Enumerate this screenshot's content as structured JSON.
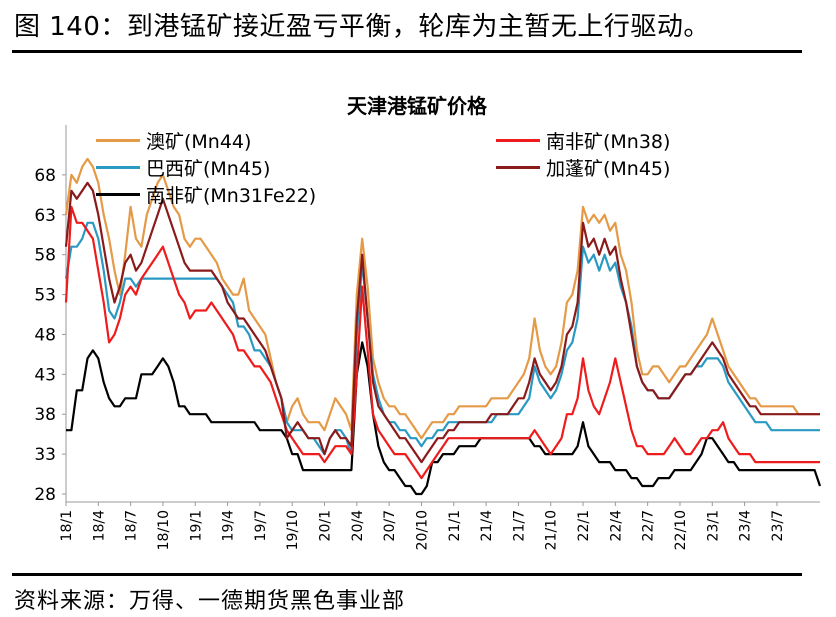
{
  "figure_title": "图 140：到港锰矿接近盈亏平衡，轮库为主暂无上行驱动。",
  "source": "资料来源：万得、一德期货黑色事业部",
  "colors": {
    "aus": "#E59A47",
    "sa38": "#EE1C1C",
    "brazil": "#2A9AC3",
    "gabon": "#8B1A1A",
    "sa31": "#000000"
  },
  "chart_data": {
    "type": "line",
    "title": "天津港锰矿价格",
    "xlabel": "",
    "ylabel": "",
    "ylim": [
      27,
      73
    ],
    "yticks": [
      28,
      33,
      38,
      43,
      48,
      53,
      58,
      63,
      68
    ],
    "xlim": [
      0,
      70
    ],
    "xticks": [
      {
        "label": "18/1",
        "x": 0
      },
      {
        "label": "18/4",
        "x": 3
      },
      {
        "label": "18/7",
        "x": 6
      },
      {
        "label": "18/10",
        "x": 9
      },
      {
        "label": "19/1",
        "x": 12
      },
      {
        "label": "19/4",
        "x": 15
      },
      {
        "label": "19/7",
        "x": 18
      },
      {
        "label": "19/10",
        "x": 21
      },
      {
        "label": "20/1",
        "x": 24
      },
      {
        "label": "20/4",
        "x": 27
      },
      {
        "label": "20/7",
        "x": 30
      },
      {
        "label": "20/10",
        "x": 33
      },
      {
        "label": "21/1",
        "x": 36
      },
      {
        "label": "21/4",
        "x": 39
      },
      {
        "label": "21/7",
        "x": 42
      },
      {
        "label": "21/10",
        "x": 45
      },
      {
        "label": "22/1",
        "x": 48
      },
      {
        "label": "22/4",
        "x": 51
      },
      {
        "label": "22/7",
        "x": 54
      },
      {
        "label": "22/10",
        "x": 57
      },
      {
        "label": "23/1",
        "x": 60
      },
      {
        "label": "23/4",
        "x": 63
      },
      {
        "label": "23/7",
        "x": 66
      }
    ],
    "x": [
      0,
      0.5,
      1,
      1.5,
      2,
      2.5,
      3,
      3.5,
      4,
      4.5,
      5,
      5.5,
      6,
      6.5,
      7,
      7.5,
      8,
      8.5,
      9,
      9.5,
      10,
      10.5,
      11,
      11.5,
      12,
      12.5,
      13,
      13.5,
      14,
      14.5,
      15,
      15.5,
      16,
      16.5,
      17,
      17.5,
      18,
      18.5,
      19,
      19.5,
      20,
      20.5,
      21,
      21.5,
      22,
      22.5,
      23,
      23.5,
      24,
      24.5,
      25,
      25.5,
      26,
      26.5,
      27,
      27.5,
      28,
      28.5,
      29,
      29.5,
      30,
      30.5,
      31,
      31.5,
      32,
      32.5,
      33,
      33.5,
      34,
      34.5,
      35,
      35.5,
      36,
      36.5,
      37,
      37.5,
      38,
      38.5,
      39,
      39.5,
      40,
      40.5,
      41,
      41.5,
      42,
      42.5,
      43,
      43.5,
      44,
      44.5,
      45,
      45.5,
      46,
      46.5,
      47,
      47.5,
      48,
      48.5,
      49,
      49.5,
      50,
      50.5,
      51,
      51.5,
      52,
      52.5,
      53,
      53.5,
      54,
      54.5,
      55,
      55.5,
      56,
      56.5,
      57,
      57.5,
      58,
      58.5,
      59,
      59.5,
      60,
      60.5,
      61,
      61.5,
      62,
      62.5,
      63,
      63.5,
      64,
      64.5,
      65,
      65.5,
      66,
      66.5,
      67,
      67.5,
      68,
      68.5,
      69,
      69.5,
      70
    ],
    "series": [
      {
        "name": "澳矿(Mn44)",
        "color_key": "aus",
        "values": [
          63,
          68,
          67,
          69,
          70,
          69,
          67,
          63,
          60,
          56,
          53,
          58,
          64,
          60,
          59,
          63,
          65,
          67,
          68,
          66,
          64,
          63,
          60,
          59,
          60,
          60,
          59,
          58,
          57,
          55,
          54,
          53,
          53,
          55,
          51,
          50,
          49,
          48,
          45,
          42,
          40,
          37,
          39,
          40,
          38,
          37,
          37,
          37,
          36,
          38,
          40,
          39,
          38,
          36,
          53,
          60,
          54,
          45,
          42,
          40,
          39,
          39,
          38,
          38,
          37,
          36,
          35,
          36,
          37,
          37,
          37,
          38,
          38,
          39,
          39,
          39,
          39,
          39,
          39,
          40,
          40,
          40,
          40,
          41,
          42,
          43,
          45,
          50,
          46,
          44,
          43,
          44,
          47,
          52,
          53,
          56,
          64,
          62,
          63,
          62,
          63,
          61,
          62,
          58,
          56,
          52,
          46,
          43,
          43,
          44,
          44,
          43,
          42,
          43,
          44,
          44,
          45,
          46,
          47,
          48,
          50,
          48,
          46,
          44,
          43,
          42,
          41,
          40,
          40,
          39,
          39,
          39,
          39,
          39,
          39,
          39,
          38,
          38,
          38,
          38,
          38
        ]
      },
      {
        "name": "南非矿(Mn38)",
        "color_key": "sa38",
        "values": [
          52,
          64,
          62,
          62,
          61,
          60,
          56,
          52,
          47,
          48,
          50,
          53,
          54,
          53,
          55,
          56,
          57,
          58,
          59,
          57,
          55,
          53,
          52,
          50,
          51,
          51,
          51,
          52,
          51,
          50,
          49,
          48,
          46,
          46,
          45,
          44,
          44,
          43,
          42,
          40,
          38,
          36,
          35,
          34,
          33,
          33,
          33,
          33,
          32,
          33,
          34,
          34,
          34,
          33,
          43,
          54,
          46,
          38,
          36,
          35,
          34,
          33,
          33,
          33,
          32,
          31,
          30,
          31,
          32,
          33,
          34,
          35,
          35,
          35,
          35,
          35,
          35,
          35,
          35,
          35,
          35,
          35,
          35,
          35,
          35,
          35,
          35,
          36,
          35,
          34,
          33,
          34,
          35,
          38,
          38,
          40,
          45,
          41,
          39,
          38,
          40,
          42,
          45,
          42,
          39,
          36,
          34,
          34,
          33,
          33,
          33,
          33,
          34,
          35,
          34,
          33,
          33,
          34,
          35,
          35,
          36,
          36,
          37,
          35,
          34,
          33,
          33,
          33,
          32,
          32,
          32,
          32,
          32,
          32,
          32,
          32,
          32,
          32,
          32,
          32,
          32
        ]
      },
      {
        "name": "巴西矿(Mn45)",
        "color_key": "brazil",
        "values": [
          55,
          59,
          59,
          60,
          62,
          62,
          60,
          56,
          51,
          50,
          52,
          55,
          55,
          54,
          55,
          55,
          55,
          55,
          55,
          55,
          55,
          55,
          55,
          55,
          55,
          55,
          55,
          55,
          55,
          54,
          53,
          52,
          49,
          49,
          48,
          46,
          46,
          45,
          44,
          42,
          40,
          37,
          36,
          36,
          36,
          35,
          35,
          34,
          33,
          35,
          36,
          36,
          35,
          33,
          48,
          57,
          50,
          43,
          40,
          38,
          37,
          37,
          36,
          36,
          35,
          35,
          34,
          35,
          35,
          36,
          36,
          37,
          37,
          37,
          37,
          37,
          37,
          37,
          37,
          37,
          38,
          38,
          38,
          38,
          38,
          39,
          40,
          44,
          42,
          41,
          40,
          41,
          43,
          46,
          47,
          50,
          59,
          57,
          58,
          56,
          58,
          56,
          57,
          54,
          52,
          49,
          44,
          42,
          41,
          41,
          40,
          40,
          40,
          41,
          42,
          43,
          43,
          44,
          44,
          45,
          45,
          45,
          44,
          42,
          41,
          40,
          39,
          38,
          37,
          37,
          37,
          36,
          36,
          36,
          36,
          36,
          36,
          36,
          36,
          36,
          36
        ]
      },
      {
        "name": "加蓬矿(Mn45)",
        "color_key": "gabon",
        "values": [
          59,
          66,
          65,
          66,
          67,
          66,
          63,
          59,
          55,
          52,
          54,
          57,
          58,
          56,
          57,
          59,
          61,
          63,
          65,
          63,
          61,
          59,
          57,
          56,
          56,
          56,
          56,
          56,
          55,
          54,
          52,
          51,
          50,
          50,
          49,
          48,
          47,
          46,
          44,
          42,
          40,
          35,
          36,
          37,
          36,
          35,
          35,
          35,
          33,
          35,
          36,
          35,
          35,
          34,
          50,
          58,
          50,
          42,
          39,
          38,
          37,
          36,
          35,
          35,
          34,
          33,
          32,
          33,
          34,
          35,
          35,
          36,
          36,
          37,
          37,
          37,
          37,
          37,
          37,
          38,
          38,
          38,
          38,
          39,
          40,
          40,
          42,
          45,
          43,
          42,
          41,
          42,
          44,
          48,
          49,
          52,
          62,
          59,
          60,
          58,
          60,
          58,
          59,
          55,
          52,
          48,
          44,
          42,
          41,
          41,
          40,
          40,
          40,
          41,
          42,
          43,
          43,
          44,
          45,
          46,
          47,
          46,
          45,
          43,
          42,
          41,
          40,
          39,
          39,
          38,
          38,
          38,
          38,
          38,
          38,
          38,
          38,
          38,
          38,
          38,
          38
        ]
      },
      {
        "name": "南非矿(Mn31Fe22)",
        "color_key": "sa31",
        "values": [
          36,
          36,
          41,
          41,
          45,
          46,
          45,
          42,
          40,
          39,
          39,
          40,
          40,
          40,
          43,
          43,
          43,
          44,
          45,
          44,
          42,
          39,
          39,
          38,
          38,
          38,
          38,
          37,
          37,
          37,
          37,
          37,
          37,
          37,
          37,
          37,
          36,
          36,
          36,
          36,
          36,
          35,
          33,
          33,
          31,
          31,
          31,
          31,
          31,
          31,
          31,
          31,
          31,
          31,
          43,
          47,
          44,
          38,
          34,
          32,
          31,
          31,
          30,
          29,
          29,
          28,
          28,
          29,
          32,
          32,
          33,
          33,
          33,
          34,
          34,
          34,
          34,
          35,
          35,
          35,
          35,
          35,
          35,
          35,
          35,
          35,
          35,
          34,
          34,
          33,
          33,
          33,
          33,
          33,
          33,
          34,
          37,
          34,
          33,
          32,
          32,
          32,
          31,
          31,
          31,
          30,
          30,
          29,
          29,
          29,
          30,
          30,
          30,
          31,
          31,
          31,
          31,
          32,
          33,
          35,
          35,
          34,
          33,
          32,
          32,
          31,
          31,
          31,
          31,
          31,
          31,
          31,
          31,
          31,
          31,
          31,
          31,
          31,
          31,
          31,
          29
        ]
      }
    ]
  }
}
